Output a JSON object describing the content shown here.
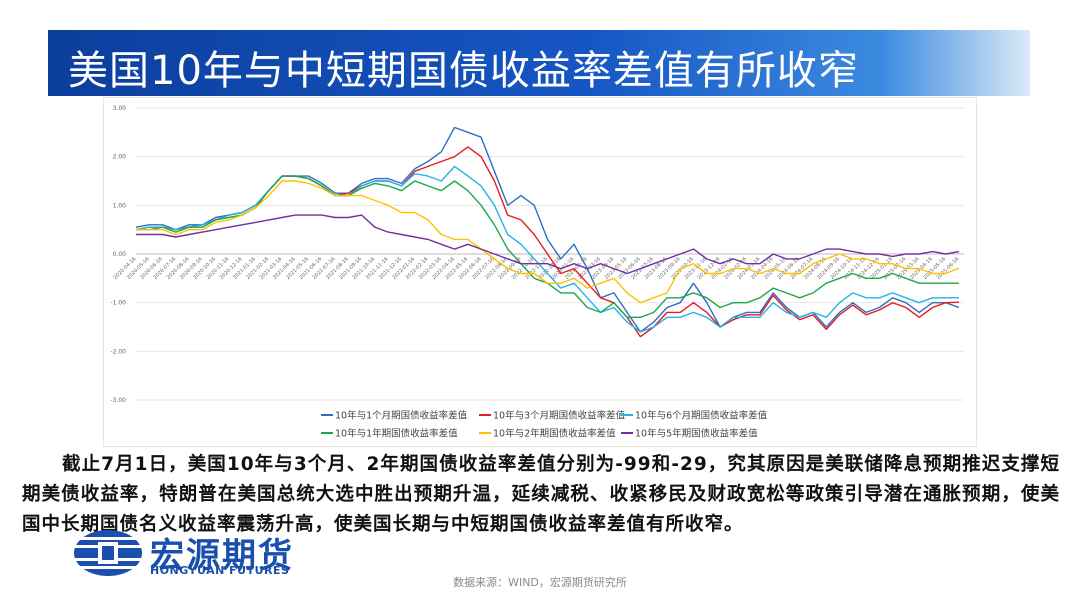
{
  "header": {
    "title": "美国10年与中短期国债收益率差值有所收窄"
  },
  "chart_data": {
    "type": "line",
    "categories": [
      "2020-04-16",
      "2020-05-16",
      "2020-06-16",
      "2020-07-16",
      "2020-08-16",
      "2020-09-16",
      "2020-10-16",
      "2020-11-16",
      "2020-12-16",
      "2021-01-16",
      "2021-02-16",
      "2021-03-16",
      "2021-04-16",
      "2021-05-16",
      "2021-06-16",
      "2021-07-16",
      "2021-08-16",
      "2021-09-16",
      "2021-10-16",
      "2021-11-16",
      "2021-12-16",
      "2022-01-16",
      "2022-02-16",
      "2022-03-16",
      "2022-04-16",
      "2022-05-16",
      "2022-06-16",
      "2022-07-16",
      "2022-08-16",
      "2022-09-16",
      "2022-10-16",
      "2022-11-16",
      "2022-12-16",
      "2023-01-16",
      "2023-02-16",
      "2023-03-16",
      "2023-04-16",
      "2023-05-16",
      "2023-06-16",
      "2023-07-16",
      "2023-08-16",
      "2023-09-16",
      "2023-10-16",
      "2023-11-16",
      "2023-12-16",
      "2024-01-16",
      "2024-02-16",
      "2024-03-16",
      "2024-04-16",
      "2024-05-16",
      "2024-06-16",
      "2024-07-16",
      "2024-08-16",
      "2024-09-16",
      "2024-10-16",
      "2024-11-16",
      "2024-12-16",
      "2025-01-16",
      "2025-02-16",
      "2025-03-16",
      "2025-04-16",
      "2025-05-16",
      "2025-06-16"
    ],
    "series": [
      {
        "name": "10年与1个月期国债收益率差值",
        "color": "#2e6fc4",
        "values": [
          0.55,
          0.6,
          0.6,
          0.5,
          0.6,
          0.6,
          0.75,
          0.8,
          0.85,
          1.0,
          1.3,
          1.6,
          1.6,
          1.6,
          1.45,
          1.25,
          1.25,
          1.45,
          1.55,
          1.55,
          1.45,
          1.75,
          1.9,
          2.1,
          2.6,
          2.5,
          2.4,
          1.7,
          1.0,
          1.2,
          1.0,
          0.3,
          -0.1,
          0.2,
          -0.3,
          -0.9,
          -0.8,
          -1.2,
          -1.6,
          -1.4,
          -1.1,
          -1.0,
          -0.6,
          -1.0,
          -1.5,
          -1.3,
          -1.2,
          -1.2,
          -0.8,
          -1.1,
          -1.3,
          -1.2,
          -1.5,
          -1.2,
          -1.0,
          -1.2,
          -1.1,
          -0.9,
          -1.0,
          -1.2,
          -1.0,
          -1.0,
          -1.1
        ]
      },
      {
        "name": "10年与3个月期国债收益率差值",
        "color": "#e41e1e",
        "values": [
          0.5,
          0.55,
          0.55,
          0.5,
          0.55,
          0.6,
          0.7,
          0.8,
          0.85,
          1.0,
          1.3,
          1.6,
          1.6,
          1.55,
          1.4,
          1.2,
          1.25,
          1.4,
          1.5,
          1.5,
          1.4,
          1.7,
          1.8,
          1.9,
          2.0,
          2.2,
          2.0,
          1.5,
          0.8,
          0.7,
          0.4,
          0.0,
          -0.4,
          -0.3,
          -0.6,
          -0.9,
          -1.0,
          -1.3,
          -1.7,
          -1.5,
          -1.2,
          -1.2,
          -1.0,
          -1.2,
          -1.5,
          -1.35,
          -1.25,
          -1.25,
          -0.85,
          -1.15,
          -1.35,
          -1.25,
          -1.55,
          -1.25,
          -1.05,
          -1.25,
          -1.15,
          -1.0,
          -1.1,
          -1.3,
          -1.1,
          -1.0,
          -0.99
        ]
      },
      {
        "name": "10年与6个月期国债收益率差值",
        "color": "#24b4e6",
        "values": [
          0.5,
          0.55,
          0.55,
          0.5,
          0.55,
          0.6,
          0.7,
          0.8,
          0.85,
          1.0,
          1.3,
          1.6,
          1.6,
          1.55,
          1.4,
          1.2,
          1.2,
          1.4,
          1.5,
          1.5,
          1.4,
          1.65,
          1.6,
          1.5,
          1.8,
          1.6,
          1.4,
          1.0,
          0.4,
          0.2,
          -0.1,
          -0.4,
          -0.7,
          -0.6,
          -0.9,
          -1.2,
          -1.1,
          -1.4,
          -1.6,
          -1.5,
          -1.3,
          -1.3,
          -1.2,
          -1.3,
          -1.5,
          -1.3,
          -1.3,
          -1.3,
          -1.0,
          -1.2,
          -1.3,
          -1.2,
          -1.3,
          -1.0,
          -0.8,
          -0.9,
          -0.9,
          -0.8,
          -0.9,
          -1.0,
          -0.9,
          -0.9,
          -0.9
        ]
      },
      {
        "name": "10年与1年期国债收益率差值",
        "color": "#1fa64b",
        "values": [
          0.5,
          0.5,
          0.55,
          0.45,
          0.55,
          0.55,
          0.7,
          0.75,
          0.8,
          0.95,
          1.3,
          1.6,
          1.6,
          1.55,
          1.4,
          1.2,
          1.2,
          1.35,
          1.45,
          1.4,
          1.3,
          1.5,
          1.4,
          1.3,
          1.5,
          1.3,
          1.0,
          0.6,
          0.1,
          -0.2,
          -0.5,
          -0.6,
          -0.8,
          -0.8,
          -1.1,
          -1.2,
          -1.0,
          -1.3,
          -1.3,
          -1.2,
          -0.9,
          -0.9,
          -0.8,
          -0.9,
          -1.1,
          -1.0,
          -1.0,
          -0.9,
          -0.7,
          -0.8,
          -0.9,
          -0.8,
          -0.6,
          -0.5,
          -0.4,
          -0.5,
          -0.5,
          -0.4,
          -0.5,
          -0.6,
          -0.6,
          -0.6,
          -0.6
        ]
      },
      {
        "name": "10年与2年期国债收益率差值",
        "color": "#ffc000",
        "values": [
          0.5,
          0.5,
          0.5,
          0.4,
          0.5,
          0.5,
          0.65,
          0.7,
          0.8,
          0.95,
          1.2,
          1.5,
          1.5,
          1.45,
          1.35,
          1.2,
          1.2,
          1.2,
          1.1,
          1.0,
          0.85,
          0.85,
          0.7,
          0.4,
          0.3,
          0.3,
          0.1,
          -0.1,
          -0.3,
          -0.4,
          -0.4,
          -0.6,
          -0.6,
          -0.5,
          -0.7,
          -0.6,
          -0.5,
          -0.8,
          -1.0,
          -0.9,
          -0.8,
          -0.3,
          -0.2,
          -0.4,
          -0.4,
          -0.3,
          -0.3,
          -0.4,
          -0.3,
          -0.4,
          -0.4,
          -0.2,
          -0.1,
          0.0,
          -0.1,
          -0.1,
          -0.2,
          -0.2,
          -0.3,
          -0.3,
          -0.4,
          -0.4,
          -0.29
        ]
      },
      {
        "name": "10年与5年期国债收益率差值",
        "color": "#7030a0",
        "values": [
          0.4,
          0.4,
          0.4,
          0.35,
          0.4,
          0.45,
          0.5,
          0.55,
          0.6,
          0.65,
          0.7,
          0.75,
          0.8,
          0.8,
          0.8,
          0.75,
          0.75,
          0.8,
          0.55,
          0.45,
          0.4,
          0.35,
          0.3,
          0.2,
          0.1,
          0.2,
          0.1,
          0.0,
          -0.1,
          -0.2,
          -0.2,
          -0.2,
          -0.3,
          -0.2,
          -0.3,
          -0.2,
          -0.3,
          -0.4,
          -0.3,
          -0.2,
          -0.1,
          0.0,
          0.1,
          -0.1,
          -0.2,
          -0.1,
          -0.2,
          -0.2,
          0.0,
          -0.1,
          -0.1,
          0.0,
          0.1,
          0.1,
          0.05,
          0.0,
          0.0,
          -0.05,
          0.0,
          0.0,
          0.05,
          0.0,
          0.05
        ]
      }
    ],
    "ylim": [
      -3,
      3
    ],
    "yticks": [
      {
        "value": 3,
        "label": "3.00"
      },
      {
        "value": 2,
        "label": "2.00"
      },
      {
        "value": 1,
        "label": "1.00"
      },
      {
        "value": 0,
        "label": "0.00"
      },
      {
        "value": -1,
        "label": "-1.00"
      },
      {
        "value": -2,
        "label": "-2.00"
      },
      {
        "value": -3,
        "label": "-3.00"
      }
    ],
    "grid": true
  },
  "paragraph": "截止7月1日，美国10年与3个月、2年期国债收益率差值分别为-99和-29，究其原因是美联储降息预期推迟支撑短期美债收益率，特朗普在美国总统大选中胜出预期升温，延续减税、收紧移民及财政宽松等政策引导潜在通胀预期，使美国中长期国债名义收益率震荡升高，使美国长期与中短期国债收益率差值有所收窄。",
  "logo": {
    "name": "宏源期货",
    "english": "HONGYUAN FUTURES"
  },
  "source": "数据来源：WIND，宏源期货研究所"
}
